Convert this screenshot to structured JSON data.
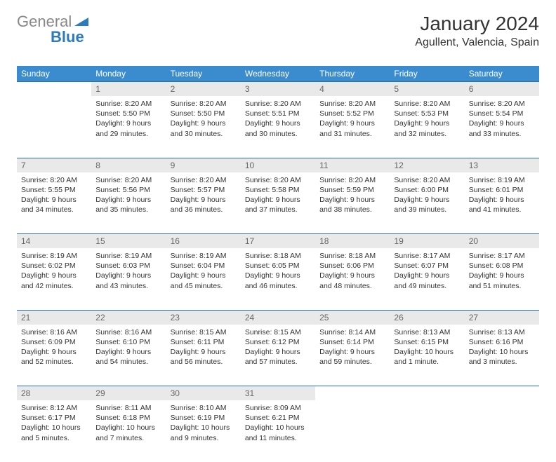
{
  "brand": {
    "part1": "General",
    "part2": "Blue",
    "color_gray": "#888888",
    "color_blue": "#2b7bbf"
  },
  "header": {
    "title": "January 2024",
    "location": "Agullent, Valencia, Spain"
  },
  "colors": {
    "header_bg": "#3b8bcf",
    "daynum_bg": "#e9e9e9",
    "row_border": "#2b6fa8",
    "text": "#333333"
  },
  "day_headers": [
    "Sunday",
    "Monday",
    "Tuesday",
    "Wednesday",
    "Thursday",
    "Friday",
    "Saturday"
  ],
  "weeks": [
    {
      "nums": [
        "",
        "1",
        "2",
        "3",
        "4",
        "5",
        "6"
      ],
      "cells": [
        null,
        {
          "sunrise": "Sunrise: 8:20 AM",
          "sunset": "Sunset: 5:50 PM",
          "day1": "Daylight: 9 hours",
          "day2": "and 29 minutes."
        },
        {
          "sunrise": "Sunrise: 8:20 AM",
          "sunset": "Sunset: 5:50 PM",
          "day1": "Daylight: 9 hours",
          "day2": "and 30 minutes."
        },
        {
          "sunrise": "Sunrise: 8:20 AM",
          "sunset": "Sunset: 5:51 PM",
          "day1": "Daylight: 9 hours",
          "day2": "and 30 minutes."
        },
        {
          "sunrise": "Sunrise: 8:20 AM",
          "sunset": "Sunset: 5:52 PM",
          "day1": "Daylight: 9 hours",
          "day2": "and 31 minutes."
        },
        {
          "sunrise": "Sunrise: 8:20 AM",
          "sunset": "Sunset: 5:53 PM",
          "day1": "Daylight: 9 hours",
          "day2": "and 32 minutes."
        },
        {
          "sunrise": "Sunrise: 8:20 AM",
          "sunset": "Sunset: 5:54 PM",
          "day1": "Daylight: 9 hours",
          "day2": "and 33 minutes."
        }
      ]
    },
    {
      "nums": [
        "7",
        "8",
        "9",
        "10",
        "11",
        "12",
        "13"
      ],
      "cells": [
        {
          "sunrise": "Sunrise: 8:20 AM",
          "sunset": "Sunset: 5:55 PM",
          "day1": "Daylight: 9 hours",
          "day2": "and 34 minutes."
        },
        {
          "sunrise": "Sunrise: 8:20 AM",
          "sunset": "Sunset: 5:56 PM",
          "day1": "Daylight: 9 hours",
          "day2": "and 35 minutes."
        },
        {
          "sunrise": "Sunrise: 8:20 AM",
          "sunset": "Sunset: 5:57 PM",
          "day1": "Daylight: 9 hours",
          "day2": "and 36 minutes."
        },
        {
          "sunrise": "Sunrise: 8:20 AM",
          "sunset": "Sunset: 5:58 PM",
          "day1": "Daylight: 9 hours",
          "day2": "and 37 minutes."
        },
        {
          "sunrise": "Sunrise: 8:20 AM",
          "sunset": "Sunset: 5:59 PM",
          "day1": "Daylight: 9 hours",
          "day2": "and 38 minutes."
        },
        {
          "sunrise": "Sunrise: 8:20 AM",
          "sunset": "Sunset: 6:00 PM",
          "day1": "Daylight: 9 hours",
          "day2": "and 39 minutes."
        },
        {
          "sunrise": "Sunrise: 8:19 AM",
          "sunset": "Sunset: 6:01 PM",
          "day1": "Daylight: 9 hours",
          "day2": "and 41 minutes."
        }
      ]
    },
    {
      "nums": [
        "14",
        "15",
        "16",
        "17",
        "18",
        "19",
        "20"
      ],
      "cells": [
        {
          "sunrise": "Sunrise: 8:19 AM",
          "sunset": "Sunset: 6:02 PM",
          "day1": "Daylight: 9 hours",
          "day2": "and 42 minutes."
        },
        {
          "sunrise": "Sunrise: 8:19 AM",
          "sunset": "Sunset: 6:03 PM",
          "day1": "Daylight: 9 hours",
          "day2": "and 43 minutes."
        },
        {
          "sunrise": "Sunrise: 8:19 AM",
          "sunset": "Sunset: 6:04 PM",
          "day1": "Daylight: 9 hours",
          "day2": "and 45 minutes."
        },
        {
          "sunrise": "Sunrise: 8:18 AM",
          "sunset": "Sunset: 6:05 PM",
          "day1": "Daylight: 9 hours",
          "day2": "and 46 minutes."
        },
        {
          "sunrise": "Sunrise: 8:18 AM",
          "sunset": "Sunset: 6:06 PM",
          "day1": "Daylight: 9 hours",
          "day2": "and 48 minutes."
        },
        {
          "sunrise": "Sunrise: 8:17 AM",
          "sunset": "Sunset: 6:07 PM",
          "day1": "Daylight: 9 hours",
          "day2": "and 49 minutes."
        },
        {
          "sunrise": "Sunrise: 8:17 AM",
          "sunset": "Sunset: 6:08 PM",
          "day1": "Daylight: 9 hours",
          "day2": "and 51 minutes."
        }
      ]
    },
    {
      "nums": [
        "21",
        "22",
        "23",
        "24",
        "25",
        "26",
        "27"
      ],
      "cells": [
        {
          "sunrise": "Sunrise: 8:16 AM",
          "sunset": "Sunset: 6:09 PM",
          "day1": "Daylight: 9 hours",
          "day2": "and 52 minutes."
        },
        {
          "sunrise": "Sunrise: 8:16 AM",
          "sunset": "Sunset: 6:10 PM",
          "day1": "Daylight: 9 hours",
          "day2": "and 54 minutes."
        },
        {
          "sunrise": "Sunrise: 8:15 AM",
          "sunset": "Sunset: 6:11 PM",
          "day1": "Daylight: 9 hours",
          "day2": "and 56 minutes."
        },
        {
          "sunrise": "Sunrise: 8:15 AM",
          "sunset": "Sunset: 6:12 PM",
          "day1": "Daylight: 9 hours",
          "day2": "and 57 minutes."
        },
        {
          "sunrise": "Sunrise: 8:14 AM",
          "sunset": "Sunset: 6:14 PM",
          "day1": "Daylight: 9 hours",
          "day2": "and 59 minutes."
        },
        {
          "sunrise": "Sunrise: 8:13 AM",
          "sunset": "Sunset: 6:15 PM",
          "day1": "Daylight: 10 hours",
          "day2": "and 1 minute."
        },
        {
          "sunrise": "Sunrise: 8:13 AM",
          "sunset": "Sunset: 6:16 PM",
          "day1": "Daylight: 10 hours",
          "day2": "and 3 minutes."
        }
      ]
    },
    {
      "nums": [
        "28",
        "29",
        "30",
        "31",
        "",
        "",
        ""
      ],
      "cells": [
        {
          "sunrise": "Sunrise: 8:12 AM",
          "sunset": "Sunset: 6:17 PM",
          "day1": "Daylight: 10 hours",
          "day2": "and 5 minutes."
        },
        {
          "sunrise": "Sunrise: 8:11 AM",
          "sunset": "Sunset: 6:18 PM",
          "day1": "Daylight: 10 hours",
          "day2": "and 7 minutes."
        },
        {
          "sunrise": "Sunrise: 8:10 AM",
          "sunset": "Sunset: 6:19 PM",
          "day1": "Daylight: 10 hours",
          "day2": "and 9 minutes."
        },
        {
          "sunrise": "Sunrise: 8:09 AM",
          "sunset": "Sunset: 6:21 PM",
          "day1": "Daylight: 10 hours",
          "day2": "and 11 minutes."
        },
        null,
        null,
        null
      ]
    }
  ]
}
